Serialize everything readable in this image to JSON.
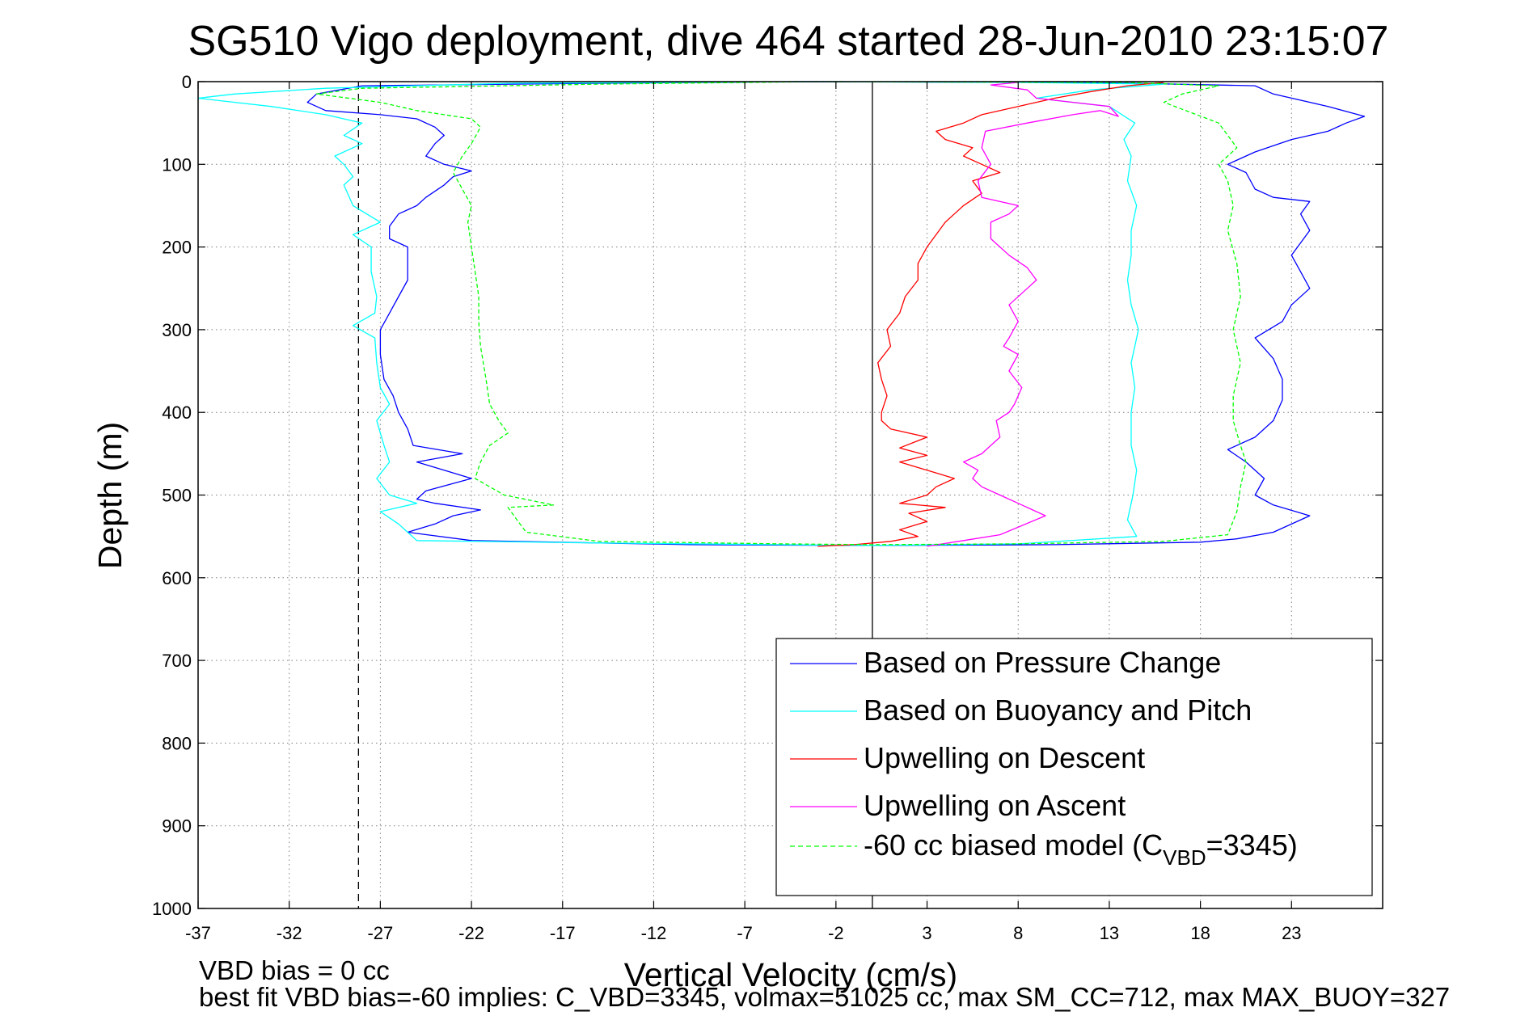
{
  "chart_data": {
    "type": "line",
    "title": "SG510 Vigo deployment, dive 464 started 28-Jun-2010 23:15:07",
    "xlabel": "Vertical Velocity (cm/s)",
    "ylabel": "Depth (m)",
    "xlim": [
      -37,
      28
    ],
    "ylim": [
      0,
      1000
    ],
    "y_reversed": true,
    "grid": true,
    "legend_position": "bottom-right",
    "x_ticks": [
      "-37",
      "-32",
      "-27",
      "-22",
      "-17",
      "-12",
      "-7",
      "-2",
      "3",
      "8",
      "13",
      "18",
      "23"
    ],
    "y_ticks": [
      "0",
      "100",
      "200",
      "300",
      "400",
      "500",
      "600",
      "700",
      "800",
      "900",
      "1000"
    ],
    "reference_lines": [
      {
        "x": -28.2,
        "style": "dashed",
        "color": "#000000"
      },
      {
        "x": 0,
        "style": "solid",
        "color": "#000000"
      }
    ],
    "series": [
      {
        "name": "Based on Pressure Change",
        "color": "#0000ff",
        "style": "solid",
        "points": [
          [
            -4,
            0
          ],
          [
            -15,
            2
          ],
          [
            -28,
            5
          ],
          [
            -30.5,
            15
          ],
          [
            -31,
            25
          ],
          [
            -30,
            35
          ],
          [
            -27,
            40
          ],
          [
            -25,
            45
          ],
          [
            -24,
            55
          ],
          [
            -23.5,
            65
          ],
          [
            -24,
            75
          ],
          [
            -24.5,
            90
          ],
          [
            -23.5,
            100
          ],
          [
            -22,
            108
          ],
          [
            -23,
            115
          ],
          [
            -23.5,
            125
          ],
          [
            -24.5,
            140
          ],
          [
            -25,
            150
          ],
          [
            -26,
            160
          ],
          [
            -26.5,
            175
          ],
          [
            -26.5,
            190
          ],
          [
            -25.5,
            200
          ],
          [
            -25.5,
            220
          ],
          [
            -25.5,
            240
          ],
          [
            -26,
            260
          ],
          [
            -26.5,
            280
          ],
          [
            -27,
            300
          ],
          [
            -27,
            330
          ],
          [
            -26.8,
            360
          ],
          [
            -26.3,
            380
          ],
          [
            -26,
            400
          ],
          [
            -25.5,
            420
          ],
          [
            -25.2,
            440
          ],
          [
            -22.5,
            450
          ],
          [
            -25,
            460
          ],
          [
            -23.5,
            470
          ],
          [
            -22,
            480
          ],
          [
            -24.5,
            495
          ],
          [
            -25,
            505
          ],
          [
            -24,
            510
          ],
          [
            -21.5,
            518
          ],
          [
            -23,
            525
          ],
          [
            -24,
            535
          ],
          [
            -25.5,
            545
          ],
          [
            -22,
            555
          ],
          [
            -10,
            560
          ],
          [
            0,
            561
          ],
          [
            10,
            560
          ],
          [
            18,
            557
          ],
          [
            20,
            553
          ],
          [
            22,
            545
          ],
          [
            24,
            525
          ],
          [
            22,
            512
          ],
          [
            21,
            500
          ],
          [
            21.5,
            480
          ],
          [
            20.5,
            460
          ],
          [
            19.5,
            445
          ],
          [
            21,
            430
          ],
          [
            22,
            410
          ],
          [
            22.5,
            385
          ],
          [
            22.5,
            360
          ],
          [
            22,
            335
          ],
          [
            21,
            310
          ],
          [
            22.5,
            290
          ],
          [
            23,
            270
          ],
          [
            24,
            250
          ],
          [
            23.5,
            230
          ],
          [
            23,
            210
          ],
          [
            24,
            180
          ],
          [
            23.5,
            160
          ],
          [
            24,
            145
          ],
          [
            22,
            140
          ],
          [
            21,
            130
          ],
          [
            20.5,
            110
          ],
          [
            19.5,
            100
          ],
          [
            21,
            85
          ],
          [
            23,
            70
          ],
          [
            25,
            60
          ],
          [
            26,
            50
          ],
          [
            27,
            42
          ],
          [
            25,
            30
          ],
          [
            22,
            15
          ],
          [
            21,
            5
          ],
          [
            12,
            1
          ],
          [
            -4,
            0
          ]
        ]
      },
      {
        "name": "Based on Buoyancy and Pitch",
        "color": "#00ffff",
        "style": "solid",
        "points": [
          [
            -4,
            0
          ],
          [
            -20,
            2
          ],
          [
            -30,
            8
          ],
          [
            -35,
            15
          ],
          [
            -37,
            20
          ],
          [
            -33,
            30
          ],
          [
            -30,
            40
          ],
          [
            -28,
            50
          ],
          [
            -29,
            65
          ],
          [
            -28,
            75
          ],
          [
            -29.5,
            90
          ],
          [
            -29,
            100
          ],
          [
            -28.5,
            115
          ],
          [
            -29,
            125
          ],
          [
            -28.5,
            150
          ],
          [
            -27,
            170
          ],
          [
            -28.5,
            185
          ],
          [
            -27.5,
            200
          ],
          [
            -27.5,
            230
          ],
          [
            -27.2,
            260
          ],
          [
            -27.3,
            280
          ],
          [
            -28.5,
            295
          ],
          [
            -27.3,
            310
          ],
          [
            -27.2,
            340
          ],
          [
            -27,
            370
          ],
          [
            -26.5,
            390
          ],
          [
            -27.2,
            410
          ],
          [
            -26.8,
            440
          ],
          [
            -26.5,
            460
          ],
          [
            -27.2,
            480
          ],
          [
            -26.5,
            500
          ],
          [
            -25,
            510
          ],
          [
            -27,
            520
          ],
          [
            -26,
            535
          ],
          [
            -25.5,
            545
          ],
          [
            -25,
            555
          ],
          [
            -15,
            558
          ],
          [
            -5,
            560
          ],
          [
            0,
            561
          ],
          [
            8,
            559
          ],
          [
            14.5,
            550
          ],
          [
            14,
            530
          ],
          [
            14.3,
            500
          ],
          [
            14.5,
            470
          ],
          [
            14.2,
            440
          ],
          [
            14.2,
            400
          ],
          [
            14.4,
            370
          ],
          [
            14.2,
            340
          ],
          [
            14.6,
            300
          ],
          [
            14.2,
            270
          ],
          [
            14,
            240
          ],
          [
            14.2,
            210
          ],
          [
            14.2,
            180
          ],
          [
            14.5,
            150
          ],
          [
            14,
            120
          ],
          [
            14.2,
            90
          ],
          [
            13.8,
            70
          ],
          [
            14.4,
            50
          ],
          [
            13,
            30
          ],
          [
            9,
            20
          ],
          [
            12,
            10
          ],
          [
            16,
            3
          ],
          [
            8,
            1
          ],
          [
            -4,
            0
          ]
        ]
      },
      {
        "name": "Upwelling on Descent",
        "color": "#ff0000",
        "style": "solid",
        "points": [
          [
            -3,
            562
          ],
          [
            -1,
            560
          ],
          [
            1,
            556
          ],
          [
            2.5,
            550
          ],
          [
            1.5,
            542
          ],
          [
            3,
            532
          ],
          [
            2,
            522
          ],
          [
            4,
            515
          ],
          [
            1.5,
            510
          ],
          [
            3,
            500
          ],
          [
            3.5,
            490
          ],
          [
            4.5,
            480
          ],
          [
            3,
            470
          ],
          [
            1.5,
            460
          ],
          [
            3,
            452
          ],
          [
            1.5,
            443
          ],
          [
            3,
            430
          ],
          [
            1,
            420
          ],
          [
            0.5,
            410
          ],
          [
            0.5,
            400
          ],
          [
            0.8,
            380
          ],
          [
            0.5,
            360
          ],
          [
            0.3,
            340
          ],
          [
            1,
            320
          ],
          [
            0.8,
            300
          ],
          [
            1.5,
            280
          ],
          [
            1.8,
            260
          ],
          [
            2.5,
            240
          ],
          [
            2.5,
            220
          ],
          [
            3,
            200
          ],
          [
            3.5,
            185
          ],
          [
            4,
            170
          ],
          [
            4.5,
            160
          ],
          [
            5,
            150
          ],
          [
            6,
            135
          ],
          [
            5.5,
            120
          ],
          [
            7,
            110
          ],
          [
            6,
            100
          ],
          [
            5,
            90
          ],
          [
            5.5,
            80
          ],
          [
            4,
            70
          ],
          [
            3.5,
            60
          ],
          [
            5,
            50
          ],
          [
            6,
            40
          ],
          [
            8,
            30
          ],
          [
            10,
            20
          ],
          [
            12,
            12
          ],
          [
            14,
            5
          ],
          [
            16,
            1
          ]
        ]
      },
      {
        "name": "Upwelling on Ascent",
        "color": "#ff00ff",
        "style": "solid",
        "points": [
          [
            3,
            562
          ],
          [
            5,
            555
          ],
          [
            7,
            548
          ],
          [
            9.5,
            525
          ],
          [
            8,
            510
          ],
          [
            7,
            500
          ],
          [
            6,
            490
          ],
          [
            5.5,
            480
          ],
          [
            5.8,
            470
          ],
          [
            5,
            460
          ],
          [
            6,
            450
          ],
          [
            6.5,
            440
          ],
          [
            7,
            430
          ],
          [
            6.8,
            410
          ],
          [
            7.5,
            400
          ],
          [
            7.8,
            390
          ],
          [
            8.2,
            370
          ],
          [
            7.5,
            350
          ],
          [
            8,
            330
          ],
          [
            7.2,
            320
          ],
          [
            7.5,
            310
          ],
          [
            8,
            290
          ],
          [
            7.5,
            270
          ],
          [
            8.5,
            250
          ],
          [
            9,
            240
          ],
          [
            8.5,
            225
          ],
          [
            7.5,
            210
          ],
          [
            6.5,
            190
          ],
          [
            6.5,
            170
          ],
          [
            7.5,
            160
          ],
          [
            8,
            150
          ],
          [
            6,
            140
          ],
          [
            5.8,
            120
          ],
          [
            6.5,
            100
          ],
          [
            6,
            80
          ],
          [
            6.2,
            60
          ],
          [
            8.5,
            50
          ],
          [
            11,
            40
          ],
          [
            12.5,
            35
          ],
          [
            13.5,
            42
          ],
          [
            13,
            30
          ],
          [
            9,
            20
          ],
          [
            8.5,
            10
          ],
          [
            6.5,
            4
          ],
          [
            8,
            1
          ]
        ]
      },
      {
        "name": "-60 cc biased model (C",
        "color": "#00ff00",
        "style": "dashed",
        "points": [
          [
            -3,
            0
          ],
          [
            -15,
            3
          ],
          [
            -28,
            8
          ],
          [
            -30.5,
            15
          ],
          [
            -27,
            25
          ],
          [
            -25,
            35
          ],
          [
            -23.5,
            40
          ],
          [
            -22,
            45
          ],
          [
            -21.5,
            55
          ],
          [
            -22,
            75
          ],
          [
            -22.5,
            90
          ],
          [
            -23,
            110
          ],
          [
            -22.5,
            130
          ],
          [
            -22,
            150
          ],
          [
            -22.2,
            170
          ],
          [
            -22,
            200
          ],
          [
            -21.8,
            230
          ],
          [
            -21.6,
            260
          ],
          [
            -21.6,
            290
          ],
          [
            -21.5,
            320
          ],
          [
            -21.2,
            360
          ],
          [
            -21,
            390
          ],
          [
            -20.5,
            410
          ],
          [
            -20,
            425
          ],
          [
            -21,
            440
          ],
          [
            -21.5,
            460
          ],
          [
            -21.8,
            480
          ],
          [
            -20.2,
            500
          ],
          [
            -17.5,
            512
          ],
          [
            -20,
            515
          ],
          [
            -19.5,
            530
          ],
          [
            -19,
            545
          ],
          [
            -15,
            556
          ],
          [
            -5,
            559
          ],
          [
            0,
            560
          ],
          [
            8,
            559
          ],
          [
            16,
            556
          ],
          [
            19.5,
            548
          ],
          [
            20,
            520
          ],
          [
            20.2,
            490
          ],
          [
            20.5,
            460
          ],
          [
            20.2,
            440
          ],
          [
            19.8,
            410
          ],
          [
            19.8,
            380
          ],
          [
            20.2,
            340
          ],
          [
            19.8,
            300
          ],
          [
            20.2,
            260
          ],
          [
            20,
            220
          ],
          [
            19.5,
            180
          ],
          [
            19.8,
            150
          ],
          [
            19.5,
            120
          ],
          [
            19,
            100
          ],
          [
            20,
            80
          ],
          [
            19,
            50
          ],
          [
            16,
            25
          ],
          [
            17,
            15
          ],
          [
            19,
            5
          ],
          [
            14,
            1
          ],
          [
            -3,
            0
          ]
        ]
      }
    ],
    "legend_suffix": {
      "subscript": "VBD",
      "tail": "=3345)"
    }
  },
  "footnotes": {
    "line1": "VBD bias = 0 cc",
    "line2": "best fit VBD bias=-60 implies: C_VBD=3345, volmax=51025 cc, max SM_CC=712, max MAX_BUOY=327"
  }
}
